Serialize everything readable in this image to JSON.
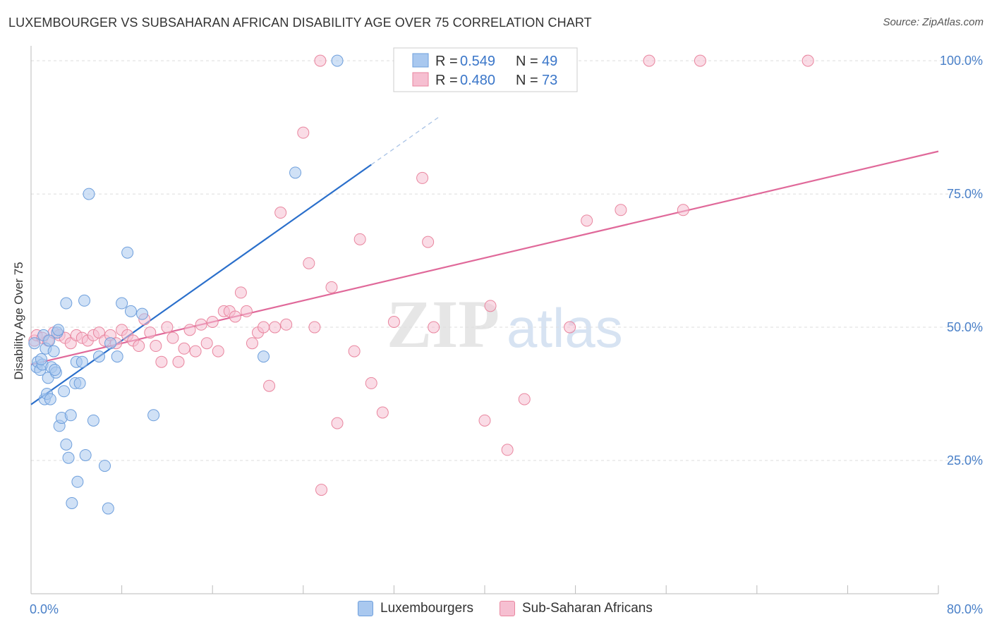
{
  "header": {
    "title": "LUXEMBOURGER VS SUBSAHARAN AFRICAN DISABILITY AGE OVER 75 CORRELATION CHART",
    "source": "Source: ZipAtlas.com"
  },
  "watermark": {
    "zip": "ZIP",
    "atlas": "atlas"
  },
  "legend": {
    "r_label": "R =",
    "n_label": "N =",
    "rows": [
      {
        "r": "0.549",
        "n": "49"
      },
      {
        "r": "0.480",
        "n": "73"
      }
    ]
  },
  "bottom_legend": {
    "series1": "Luxembourgers",
    "series2": "Sub-Saharan Africans"
  },
  "colors": {
    "blue_fill": "#a9c8ef",
    "blue_stroke": "#6e9fdc",
    "blue_line": "#2a6fcb",
    "pink_fill": "#f6bfd1",
    "pink_stroke": "#e9869f",
    "pink_line": "#e0699a",
    "grid": "#dddddd",
    "axis_label": "#4a80c8"
  },
  "chart_data": {
    "type": "scatter",
    "title": "LUXEMBOURGER VS SUBSAHARAN AFRICAN DISABILITY AGE OVER 75 CORRELATION CHART",
    "xlabel": "",
    "ylabel": "Disability Age Over 75",
    "xlim": [
      0,
      80
    ],
    "ylim": [
      0,
      102
    ],
    "x_tick_labels": [
      "0.0%",
      "80.0%"
    ],
    "y_ticks": [
      25,
      50,
      75,
      100
    ],
    "y_tick_labels": [
      "25.0%",
      "50.0%",
      "75.0%",
      "100.0%"
    ],
    "grid": true,
    "series": [
      {
        "name": "Luxembourgers",
        "R": 0.549,
        "N": 49,
        "trend": {
          "x0": 0,
          "y0": 35.5,
          "x1": 30,
          "y1": 80.5,
          "dashed_to_x": 36,
          "dashed_to_y": 89.5
        },
        "points": [
          [
            0.3,
            47.0
          ],
          [
            0.5,
            42.5
          ],
          [
            0.6,
            43.5
          ],
          [
            0.8,
            42.0
          ],
          [
            1.0,
            43.0
          ],
          [
            1.1,
            48.5
          ],
          [
            1.2,
            36.5
          ],
          [
            1.3,
            46.0
          ],
          [
            1.4,
            37.5
          ],
          [
            1.5,
            40.5
          ],
          [
            1.7,
            36.5
          ],
          [
            1.8,
            42.5
          ],
          [
            2.0,
            45.5
          ],
          [
            2.2,
            41.5
          ],
          [
            2.3,
            49.0
          ],
          [
            2.4,
            49.5
          ],
          [
            2.5,
            31.5
          ],
          [
            2.7,
            33.0
          ],
          [
            2.9,
            38.0
          ],
          [
            3.1,
            28.0
          ],
          [
            3.3,
            25.5
          ],
          [
            3.5,
            33.5
          ],
          [
            3.6,
            17.0
          ],
          [
            3.9,
            39.5
          ],
          [
            4.0,
            43.5
          ],
          [
            4.1,
            21.0
          ],
          [
            4.3,
            39.5
          ],
          [
            4.5,
            43.5
          ],
          [
            4.8,
            26.0
          ],
          [
            3.1,
            54.5
          ],
          [
            4.7,
            55.0
          ],
          [
            5.1,
            75.0
          ],
          [
            5.5,
            32.5
          ],
          [
            6.0,
            44.5
          ],
          [
            6.5,
            24.0
          ],
          [
            6.8,
            16.0
          ],
          [
            7.0,
            47.0
          ],
          [
            7.6,
            44.5
          ],
          [
            8.0,
            54.5
          ],
          [
            8.5,
            64.0
          ],
          [
            8.8,
            53.0
          ],
          [
            9.8,
            52.5
          ],
          [
            10.8,
            33.5
          ],
          [
            20.5,
            44.5
          ],
          [
            23.3,
            79.0
          ],
          [
            27.0,
            100.0
          ],
          [
            2.1,
            42.0
          ],
          [
            1.6,
            47.5
          ],
          [
            0.9,
            44.0
          ]
        ]
      },
      {
        "name": "Sub-Saharan Africans",
        "R": 0.48,
        "N": 73,
        "trend": {
          "x0": 0,
          "y0": 43.0,
          "x1": 80,
          "y1": 83.0
        },
        "points": [
          [
            0.3,
            47.5
          ],
          [
            0.5,
            48.5
          ],
          [
            1.0,
            48.0
          ],
          [
            1.5,
            47.5
          ],
          [
            2.0,
            49.0
          ],
          [
            2.5,
            48.5
          ],
          [
            3.0,
            48.0
          ],
          [
            3.5,
            47.0
          ],
          [
            4.0,
            48.5
          ],
          [
            4.5,
            48.0
          ],
          [
            5.0,
            47.5
          ],
          [
            5.5,
            48.5
          ],
          [
            6.0,
            49.0
          ],
          [
            6.5,
            47.5
          ],
          [
            7.0,
            48.5
          ],
          [
            7.5,
            47.0
          ],
          [
            8.0,
            49.5
          ],
          [
            8.5,
            48.5
          ],
          [
            9.0,
            47.5
          ],
          [
            9.5,
            46.5
          ],
          [
            10.0,
            51.5
          ],
          [
            10.5,
            49.0
          ],
          [
            11.0,
            46.5
          ],
          [
            11.5,
            43.5
          ],
          [
            12.0,
            50.0
          ],
          [
            12.5,
            48.0
          ],
          [
            13.0,
            43.5
          ],
          [
            13.5,
            46.0
          ],
          [
            14.0,
            49.5
          ],
          [
            14.5,
            45.5
          ],
          [
            15.0,
            50.5
          ],
          [
            15.5,
            47.0
          ],
          [
            16.0,
            51.0
          ],
          [
            16.5,
            45.5
          ],
          [
            17.0,
            53.0
          ],
          [
            17.5,
            53.0
          ],
          [
            18.0,
            52.0
          ],
          [
            18.5,
            56.5
          ],
          [
            19.0,
            53.0
          ],
          [
            19.5,
            47.0
          ],
          [
            20.0,
            49.0
          ],
          [
            20.5,
            50.0
          ],
          [
            21.0,
            39.0
          ],
          [
            21.5,
            50.0
          ],
          [
            22.5,
            50.5
          ],
          [
            22.0,
            71.5
          ],
          [
            24.0,
            86.5
          ],
          [
            24.5,
            62.0
          ],
          [
            25.0,
            50.0
          ],
          [
            25.5,
            100.0
          ],
          [
            26.5,
            57.5
          ],
          [
            27.0,
            32.0
          ],
          [
            28.5,
            45.5
          ],
          [
            29.0,
            66.5
          ],
          [
            30.0,
            39.5
          ],
          [
            31.0,
            34.0
          ],
          [
            32.0,
            51.0
          ],
          [
            34.0,
            100.0
          ],
          [
            34.5,
            78.0
          ],
          [
            35.5,
            50.0
          ],
          [
            35.0,
            66.0
          ],
          [
            40.0,
            32.5
          ],
          [
            40.5,
            54.0
          ],
          [
            42.0,
            27.0
          ],
          [
            43.5,
            36.5
          ],
          [
            47.5,
            50.0
          ],
          [
            49.0,
            70.0
          ],
          [
            52.0,
            72.0
          ],
          [
            54.5,
            100.0
          ],
          [
            57.5,
            72.0
          ],
          [
            59.0,
            100.0
          ],
          [
            68.5,
            100.0
          ],
          [
            25.6,
            19.5
          ]
        ]
      }
    ]
  }
}
